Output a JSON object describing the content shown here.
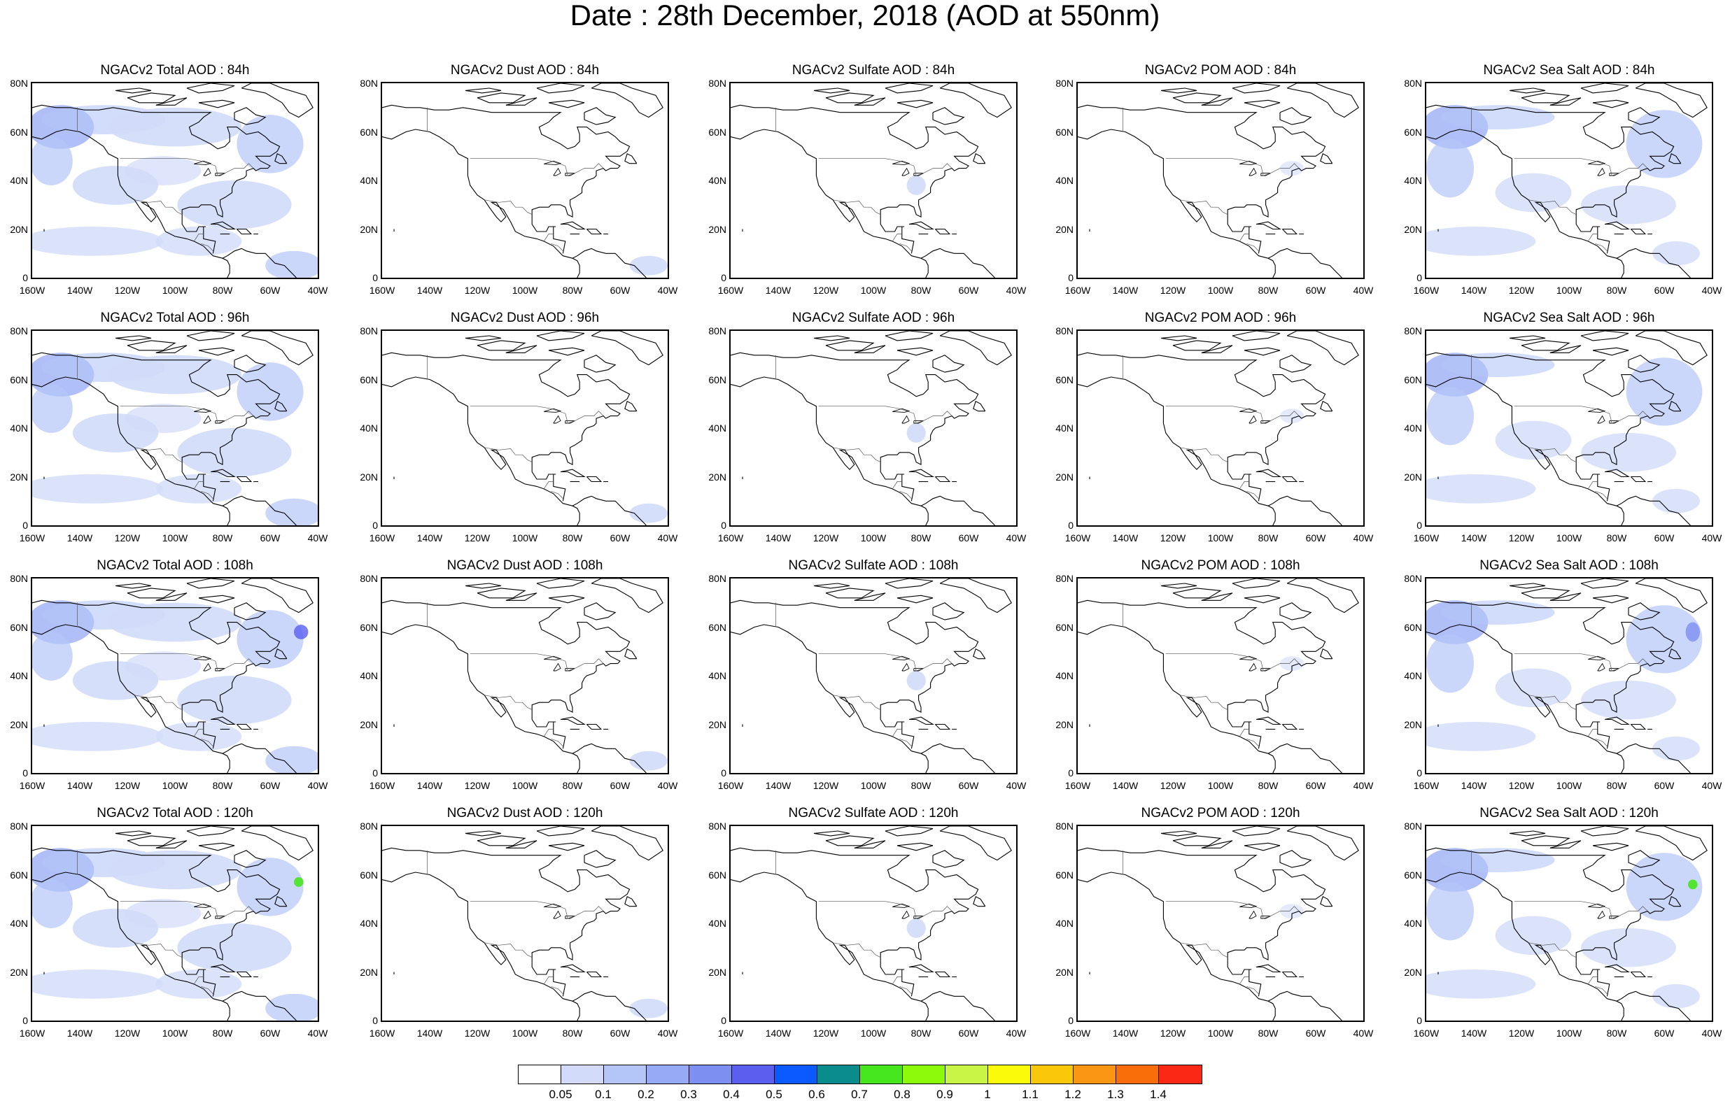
{
  "title": "Date : 28th December, 2018 (AOD at 550nm)",
  "panels": [
    [
      "NGACv2 Total AOD : 84h",
      "NGACv2 Dust AOD : 84h",
      "NGACv2 Sulfate AOD : 84h",
      "NGACv2 POM AOD : 84h",
      "NGACv2 Sea Salt AOD : 84h"
    ],
    [
      "NGACv2 Total AOD : 96h",
      "NGACv2 Dust AOD : 96h",
      "NGACv2 Sulfate AOD : 96h",
      "NGACv2 POM AOD : 96h",
      "NGACv2 Sea Salt AOD : 96h"
    ],
    [
      "NGACv2 Total AOD : 108h",
      "NGACv2 Dust AOD : 108h",
      "NGACv2 Sulfate AOD : 108h",
      "NGACv2 POM AOD : 108h",
      "NGACv2 Sea Salt AOD : 108h"
    ],
    [
      "NGACv2 Total AOD : 120h",
      "NGACv2 Dust AOD : 120h",
      "NGACv2 Sulfate AOD : 120h",
      "NGACv2 POM AOD : 120h",
      "NGACv2 Sea Salt  AOD : 120h"
    ]
  ],
  "panel_types": [
    "total",
    "dust",
    "sulfate",
    "pom",
    "seasalt"
  ],
  "y_ticks": [
    "80N",
    "60N",
    "40N",
    "20N",
    "0"
  ],
  "x_ticks": [
    "160W",
    "140W",
    "120W",
    "100W",
    "80W",
    "60W",
    "40W"
  ],
  "colorbar": {
    "colors": [
      "#ffffff",
      "#d2dcfa",
      "#b4c6f8",
      "#96aaf5",
      "#7e8ff2",
      "#5a5ff0",
      "#0a5aff",
      "#0a8c8c",
      "#46e61e",
      "#8cfa0a",
      "#c8f546",
      "#fafa0a",
      "#fac80a",
      "#fa9614",
      "#fa6e0a",
      "#fa2814"
    ],
    "labels": [
      "0.05",
      "0.1",
      "0.2",
      "0.3",
      "0.4",
      "0.5",
      "0.6",
      "0.7",
      "0.8",
      "0.9",
      "1",
      "1.1",
      "1.2",
      "1.3",
      "1.4"
    ]
  }
}
